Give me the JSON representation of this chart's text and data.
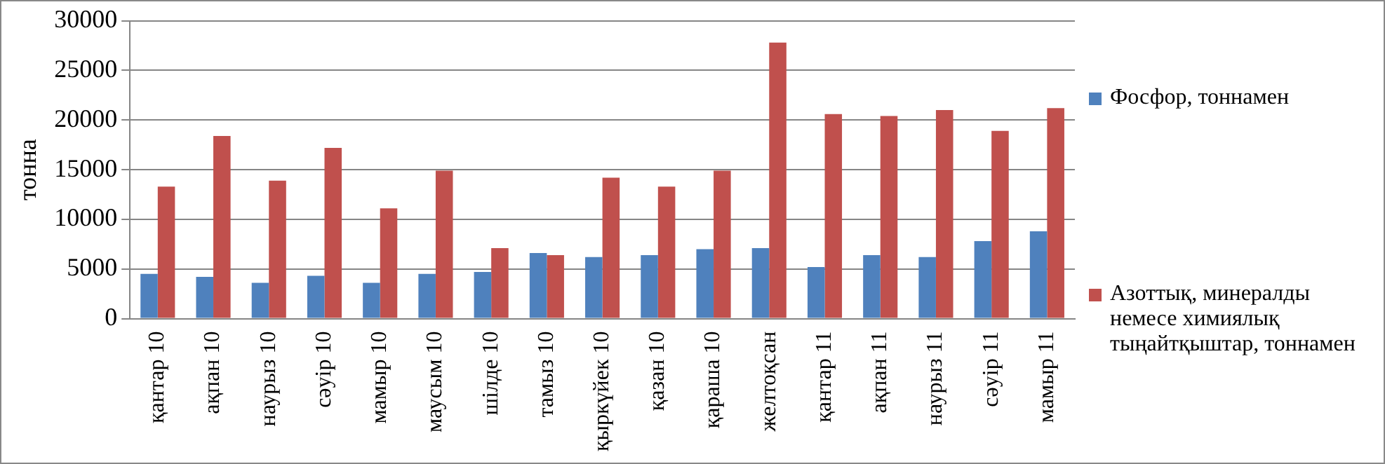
{
  "chart_data": {
    "type": "bar",
    "ylabel": "тонна",
    "categories": [
      "қантар 10",
      "ақпан 10",
      "наурыз 10",
      "сәуір 10",
      "мамыр 10",
      "маусым 10",
      "шілде 10",
      "тамыз 10",
      "қыркүйек 10",
      "қазан 10",
      "қараша 10",
      "желтоқсан",
      "қантар 11",
      "ақпан 11",
      "наурыз 11",
      "сәуір 11",
      "мамыр 11"
    ],
    "series": [
      {
        "name": "Фосфор, тоннамен",
        "color": "#4f81bd",
        "values": [
          4500,
          4200,
          3600,
          4300,
          3600,
          4500,
          4700,
          6600,
          6200,
          6400,
          7000,
          7100,
          5200,
          6400,
          6200,
          7800,
          8800
        ]
      },
      {
        "name": "Азоттық,  минералды немесе химиялық тыңайтқыштар, тоннамен",
        "color": "#c0504d",
        "values": [
          13300,
          18400,
          13900,
          17200,
          11100,
          14900,
          7100,
          6400,
          14200,
          13300,
          14900,
          27800,
          20600,
          20400,
          21000,
          18900,
          21200
        ]
      }
    ],
    "ylim": [
      0,
      30000
    ],
    "yticks": [
      0,
      5000,
      10000,
      15000,
      20000,
      25000,
      30000
    ],
    "grid": "y",
    "legend": "right"
  }
}
